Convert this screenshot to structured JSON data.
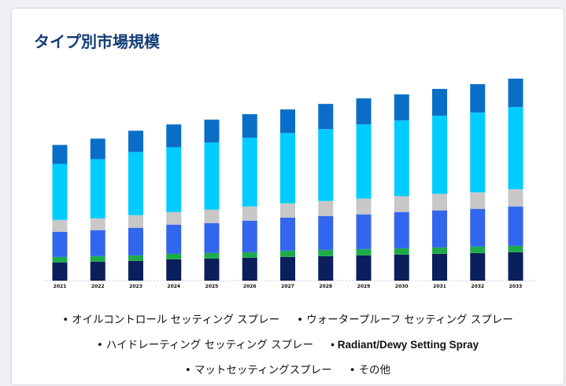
{
  "title": "タイプ別市場規模",
  "legend_bullet": "•",
  "chart_data": {
    "type": "bar",
    "stacked": true,
    "categories": [
      "2021",
      "2022",
      "2023",
      "2024",
      "2025",
      "2026",
      "2027",
      "2028",
      "2029",
      "2030",
      "2031",
      "2032",
      "2033"
    ],
    "series": [
      {
        "name": "オイルコントロール セッティング スプレー",
        "color": "#0a1f5c",
        "values": [
          23,
          24,
          25,
          27,
          28,
          29,
          30,
          31,
          32,
          33,
          34,
          35,
          36
        ]
      },
      {
        "name": "ウォータープルーフ セッティング スプレー",
        "color": "#1faa4a",
        "values": [
          7,
          7,
          7,
          7,
          7,
          7,
          8,
          8,
          8,
          8,
          8,
          8,
          8
        ]
      },
      {
        "name": "ハイドレーティング セッティング スプレー",
        "color": "#3366ee",
        "values": [
          32,
          33,
          35,
          37,
          38,
          40,
          42,
          43,
          44,
          46,
          47,
          48,
          50
        ]
      },
      {
        "name": "Radiant/Dewy Setting Spray",
        "color": "#c8c8c8",
        "values": [
          15,
          15,
          16,
          16,
          17,
          18,
          18,
          19,
          20,
          20,
          21,
          21,
          22
        ]
      },
      {
        "name": "マットセッティングスプレー",
        "color": "#00ccff",
        "values": [
          71,
          75,
          80,
          82,
          85,
          87,
          89,
          91,
          94,
          96,
          99,
          101,
          104
        ]
      },
      {
        "name": "その他",
        "color": "#0a6ec8",
        "values": [
          24,
          26,
          27,
          29,
          29,
          30,
          30,
          32,
          33,
          33,
          34,
          36,
          36
        ]
      }
    ],
    "ylim": [
      0,
      265
    ],
    "grid": false,
    "legend_position": "bottom"
  }
}
